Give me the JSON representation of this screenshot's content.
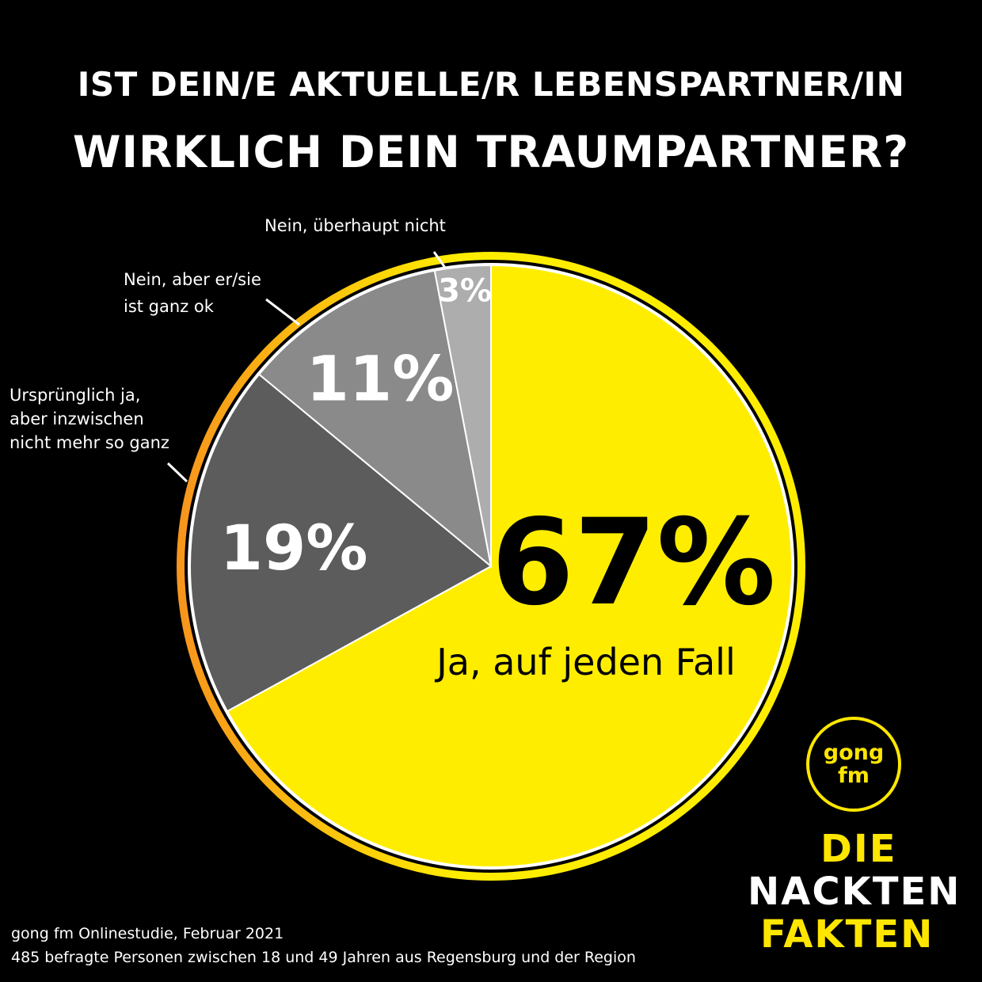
{
  "header": {
    "title_line1": "IST DEIN/E AKTUELLE/R LEBENSPARTNER/IN",
    "title_line2": "WIRKLICH DEIN TRAUMPARTNER?"
  },
  "chart_data": {
    "type": "pie",
    "slices": [
      {
        "label": "Ja, auf jeden Fall",
        "value": 67,
        "display": "67%",
        "color": "#ffed00"
      },
      {
        "label": "Ursprünglich ja, aber inzwischen nicht mehr so ganz",
        "value": 19,
        "display": "19%",
        "color": "#5c5c5c"
      },
      {
        "label": "Nein, aber er/sie ist ganz ok",
        "value": 11,
        "display": "11%",
        "color": "#8a8a8a"
      },
      {
        "label": "Nein, überhaupt nicht",
        "value": 3,
        "display": "3%",
        "color": "#adadad"
      }
    ],
    "ring_colors": [
      "#f7941d",
      "#ffed00"
    ]
  },
  "labels": {
    "no_at_all": "Nein, überhaupt nicht",
    "no_but_ok_line1": "Nein, aber er/sie",
    "no_but_ok_line2": "ist ganz ok",
    "originally_line1": "Ursprünglich ja,",
    "originally_line2": "aber inzwischen",
    "originally_line3": "nicht mehr so ganz"
  },
  "footer": {
    "line1": "gong fm Onlinestudie, Februar 2021",
    "line2": "485 befragte Personen zwischen 18 und 49 Jahren aus Regensburg und der Region"
  },
  "logo": {
    "gong_line1": "gong",
    "gong_line2": "fm",
    "brand_line1": "DIE",
    "brand_line2": "NACKTEN",
    "brand_line3": "FAKTEN",
    "brand_color": "#ffe600"
  }
}
